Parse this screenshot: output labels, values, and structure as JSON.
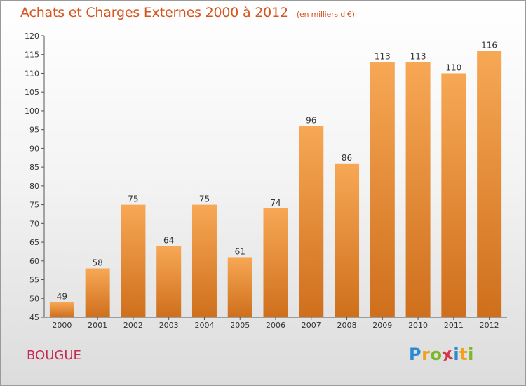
{
  "header": {
    "title": "Achats et Charges Externes 2000 à 2012",
    "unit": "(en milliers d'€)"
  },
  "footer": {
    "commune": "BOUGUE",
    "logo_text": "Proxiti",
    "logo_letters": [
      {
        "ch": "P",
        "color": "#2a8bd1"
      },
      {
        "ch": "r",
        "color": "#f0a21e"
      },
      {
        "ch": "o",
        "color": "#7ab929"
      },
      {
        "ch": "x",
        "color": "#d6344a"
      },
      {
        "ch": "i",
        "color": "#2a8bd1"
      },
      {
        "ch": "t",
        "color": "#f0a21e"
      },
      {
        "ch": "i",
        "color": "#7ab929"
      }
    ]
  },
  "colors": {
    "title": "#d4551f",
    "commune": "#c8294f",
    "bar_light": "#f7a855",
    "bar_dark": "#cf6f1c"
  },
  "chart_data": {
    "type": "bar",
    "title": "Achats et Charges Externes 2000 à 2012",
    "subtitle": "(en milliers d'€)",
    "xlabel": "",
    "ylabel": "",
    "categories": [
      "2000",
      "2001",
      "2002",
      "2003",
      "2004",
      "2005",
      "2006",
      "2007",
      "2008",
      "2009",
      "2010",
      "2011",
      "2012"
    ],
    "values": [
      49,
      58,
      75,
      64,
      75,
      61,
      74,
      96,
      86,
      113,
      113,
      110,
      116
    ],
    "ylim": [
      45,
      120
    ],
    "yticks": [
      45,
      50,
      55,
      60,
      65,
      70,
      75,
      80,
      85,
      90,
      95,
      100,
      105,
      110,
      115,
      120
    ],
    "grid": false,
    "legend": "none"
  }
}
